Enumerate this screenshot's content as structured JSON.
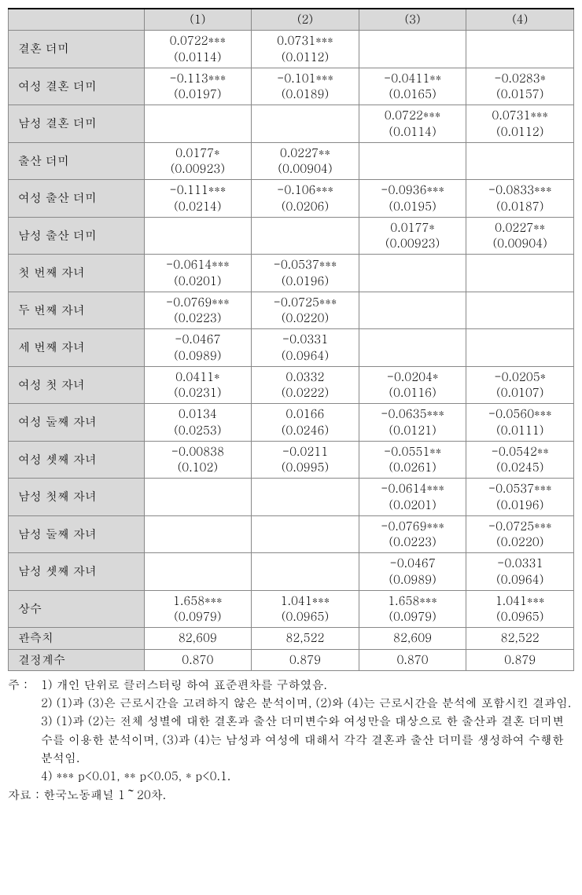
{
  "headers": [
    "",
    "(1)",
    "(2)",
    "(3)",
    "(4)"
  ],
  "rows": [
    {
      "label": "결혼 더미",
      "cells": [
        {
          "est": "0.0722***",
          "se": "(0.0114)"
        },
        {
          "est": "0.0731***",
          "se": "(0.0112)"
        },
        {
          "est": "",
          "se": ""
        },
        {
          "est": "",
          "se": ""
        }
      ]
    },
    {
      "label": "여성 결혼 더미",
      "cells": [
        {
          "est": "-0.113***",
          "se": "(0.0197)"
        },
        {
          "est": "-0.101***",
          "se": "(0.0189)"
        },
        {
          "est": "-0.0411**",
          "se": "(0.0165)"
        },
        {
          "est": "-0.0283*",
          "se": "(0.0157)"
        }
      ]
    },
    {
      "label": "남성 결혼 더미",
      "cells": [
        {
          "est": "",
          "se": ""
        },
        {
          "est": "",
          "se": ""
        },
        {
          "est": "0.0722***",
          "se": "(0.0114)"
        },
        {
          "est": "0.0731***",
          "se": "(0.0112)"
        }
      ]
    },
    {
      "label": "출산 더미",
      "cells": [
        {
          "est": "0.0177*",
          "se": "(0.00923)"
        },
        {
          "est": "0.0227**",
          "se": "(0.00904)"
        },
        {
          "est": "",
          "se": ""
        },
        {
          "est": "",
          "se": ""
        }
      ]
    },
    {
      "label": "여성 출산 더미",
      "cells": [
        {
          "est": "-0.111***",
          "se": "(0.0214)"
        },
        {
          "est": "-0.106***",
          "se": "(0.0206)"
        },
        {
          "est": "-0.0936***",
          "se": "(0.0195)"
        },
        {
          "est": "-0.0833***",
          "se": "(0.0187)"
        }
      ]
    },
    {
      "label": "남성 출산 더미",
      "cells": [
        {
          "est": "",
          "se": ""
        },
        {
          "est": "",
          "se": ""
        },
        {
          "est": "0.0177*",
          "se": "(0.00923)"
        },
        {
          "est": "0.0227**",
          "se": "(0.00904)"
        }
      ]
    },
    {
      "label": "첫 번째 자녀",
      "cells": [
        {
          "est": "-0.0614***",
          "se": "(0.0201)"
        },
        {
          "est": "-0.0537***",
          "se": "(0.0196)"
        },
        {
          "est": "",
          "se": ""
        },
        {
          "est": "",
          "se": ""
        }
      ]
    },
    {
      "label": "두 번째 자녀",
      "cells": [
        {
          "est": "-0.0769***",
          "se": "(0.0223)"
        },
        {
          "est": "-0.0725***",
          "se": "(0.0220)"
        },
        {
          "est": "",
          "se": ""
        },
        {
          "est": "",
          "se": ""
        }
      ]
    },
    {
      "label": "세 번째 자녀",
      "cells": [
        {
          "est": "-0.0467",
          "se": "(0.0989)"
        },
        {
          "est": "-0.0331",
          "se": "(0.0964)"
        },
        {
          "est": "",
          "se": ""
        },
        {
          "est": "",
          "se": ""
        }
      ]
    },
    {
      "label": "여성 첫 자녀",
      "cells": [
        {
          "est": "0.0411*",
          "se": "(0.0231)"
        },
        {
          "est": "0.0332",
          "se": "(0.0222)"
        },
        {
          "est": "-0.0204*",
          "se": "(0.0116)"
        },
        {
          "est": "-0.0205*",
          "se": "(0.0107)"
        }
      ]
    },
    {
      "label": "여성 둘째 자녀",
      "cells": [
        {
          "est": "0.0134",
          "se": "(0.0253)"
        },
        {
          "est": "0.0166",
          "se": "(0.0246)"
        },
        {
          "est": "-0.0635***",
          "se": "(0.0121)"
        },
        {
          "est": "-0.0560***",
          "se": "(0.0111)"
        }
      ]
    },
    {
      "label": "여성 셋째 자녀",
      "cells": [
        {
          "est": "-0.00838",
          "se": "(0.102)"
        },
        {
          "est": "-0.0211",
          "se": "(0.0995)"
        },
        {
          "est": "-0.0551**",
          "se": "(0.0261)"
        },
        {
          "est": "-0.0542**",
          "se": "(0.0245)"
        }
      ]
    },
    {
      "label": "남성 첫째 자녀",
      "cells": [
        {
          "est": "",
          "se": ""
        },
        {
          "est": "",
          "se": ""
        },
        {
          "est": "-0.0614***",
          "se": "(0.0201)"
        },
        {
          "est": "-0.0537***",
          "se": "(0.0196)"
        }
      ]
    },
    {
      "label": "남성 둘째 자녀",
      "cells": [
        {
          "est": "",
          "se": ""
        },
        {
          "est": "",
          "se": ""
        },
        {
          "est": "-0.0769***",
          "se": "(0.0223)"
        },
        {
          "est": "-0.0725***",
          "se": "(0.0220)"
        }
      ]
    },
    {
      "label": "남성 셋째 자녀",
      "cells": [
        {
          "est": "",
          "se": ""
        },
        {
          "est": "",
          "se": ""
        },
        {
          "est": "-0.0467",
          "se": "(0.0989)"
        },
        {
          "est": "-0.0331",
          "se": "(0.0964)"
        }
      ]
    },
    {
      "label": "상수",
      "cells": [
        {
          "est": "1.658***",
          "se": "(0.0979)"
        },
        {
          "est": "1.041***",
          "se": "(0.0965)"
        },
        {
          "est": "1.658***",
          "se": "(0.0979)"
        },
        {
          "est": "1.041***",
          "se": "(0.0965)"
        }
      ]
    }
  ],
  "single_rows": [
    {
      "label": "관측치",
      "cells": [
        "82,609",
        "82,522",
        "82,609",
        "82,522"
      ]
    },
    {
      "label": "결정계수",
      "cells": [
        "0.870",
        "0.879",
        "0.870",
        "0.879"
      ]
    }
  ],
  "notes": {
    "prefix": "주 : ",
    "items": [
      "1) 개인 단위로 클러스터링 하여 표준편차를 구하였음.",
      "2) (1)과 (3)은 근로시간을 고려하지 않은 분석이며, (2)와 (4)는 근로시간을 분석에 포함시킨 결과임.",
      "3) (1)과 (2)는 전체 성별에 대한 결혼과 출산 더미변수와 여성만을 대상으로 한 출산과 결혼 더미변수를 이용한 분석이며, (3)과 (4)는 남성과 여성에 대해서 각각 결혼과 출산 더미를 생성하여 수행한 분석임.",
      "4) *** p<0.01, ** p<0.05, * p<0.1."
    ]
  },
  "source_label": "자료 : ",
  "source_text": "한국노동패널 1～20차."
}
